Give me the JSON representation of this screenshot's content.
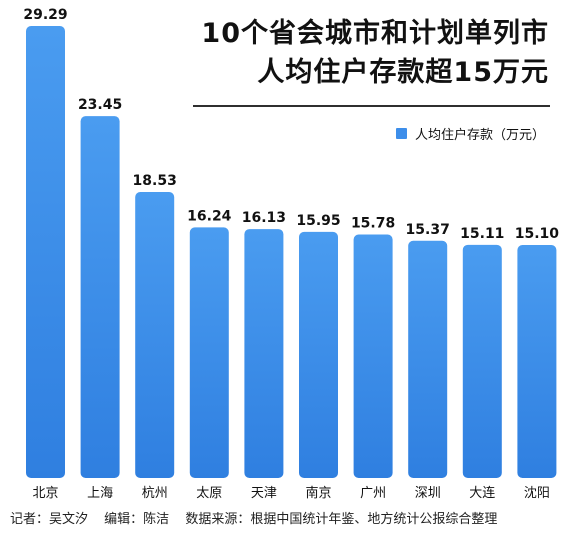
{
  "title_lines": [
    "10个省会城市和计划单列市",
    "人均住户存款超15万元"
  ],
  "legend_label": "人均住户存款（万元）",
  "colors": {
    "bar_top": "#4a9cf0",
    "bar_bottom": "#2f7fe0",
    "legend": "#3d8eea"
  },
  "chart_data": {
    "type": "bar",
    "categories": [
      "北京",
      "上海",
      "杭州",
      "太原",
      "天津",
      "南京",
      "广州",
      "深圳",
      "大连",
      "沈阳"
    ],
    "series": [
      {
        "name": "人均住户存款（万元）",
        "values": [
          29.29,
          23.45,
          18.53,
          16.24,
          16.13,
          15.95,
          15.78,
          15.37,
          15.11,
          15.1
        ]
      }
    ],
    "value_labels": [
      "29.29",
      "23.45",
      "18.53",
      "16.24",
      "16.13",
      "15.95",
      "15.78",
      "15.37",
      "15.11",
      "15.10"
    ],
    "ylim": [
      0,
      30
    ],
    "grid": false,
    "legend_position": "top-right"
  },
  "footer": {
    "reporter": "记者：吴文汐",
    "editor": "编辑：陈洁",
    "source": "数据来源：根据中国统计年鉴、地方统计公报综合整理"
  }
}
